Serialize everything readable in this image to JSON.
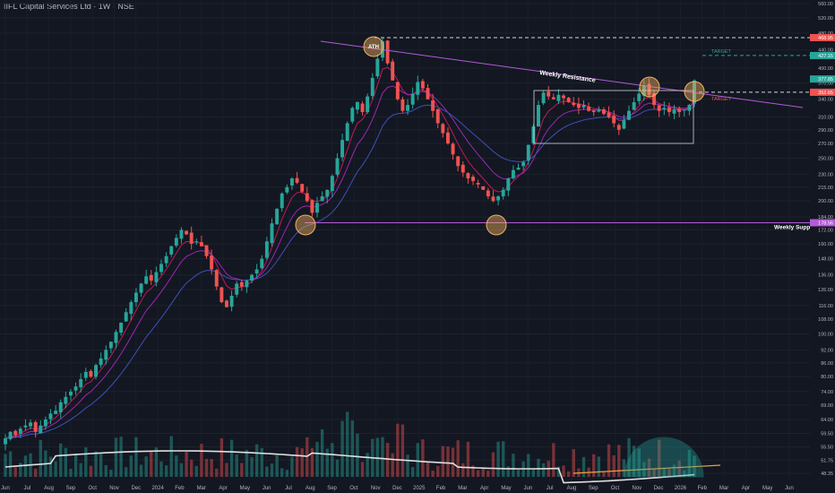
{
  "header": {
    "title": "IIFL Capital Services Ltd · 1W · NSE"
  },
  "colors": {
    "background": "#131722",
    "bullish": "#26a69a",
    "bearish": "#ef5350",
    "resistance": "#b25bd6",
    "support": "#b25bd6",
    "ema_fast": "#c2185b",
    "ema_mid": "#9c27b0",
    "ema_slow": "#3f51b5",
    "volume_ma": "#e0e0e0",
    "target_green": "#26a69a",
    "target_red": "#ef5350",
    "circle": "#f0b060",
    "arc": "#26a69a"
  },
  "annotations": {
    "ath": "ATH",
    "weekly_resistance": "Weekly Resistance",
    "weekly_support": "Weekly Support",
    "target_upper": "TARGET",
    "target_lower": "TARGET"
  },
  "chart_data": {
    "type": "candlestick",
    "title": "IIFL Capital Services Ltd · 1W · NSE",
    "y_scale": "log",
    "ylim": [
      47,
      560
    ],
    "y_ticks": [
      48.35,
      51.75,
      55.5,
      59.5,
      64.0,
      69.0,
      74.0,
      80.0,
      86.0,
      92.0,
      100.0,
      108.0,
      116.0,
      126.0,
      136.0,
      148.0,
      160.0,
      172.0,
      184.0,
      200.0,
      215.0,
      230.0,
      250.0,
      270.0,
      290.0,
      310.0,
      340.0,
      370.0,
      400.0,
      440.0,
      480.0,
      520.0,
      560.0
    ],
    "y_tick_labels": [
      "48.35",
      "51.75",
      "55.50",
      "59.50",
      "64.00",
      "69.00",
      "74.00",
      "80.00",
      "86.00",
      "92.00",
      "100.00",
      "108.00",
      "116.00",
      "126.00",
      "136.00",
      "148.00",
      "160.00",
      "172.00",
      "184.00",
      "200.00",
      "215.00",
      "230.00",
      "250.00",
      "270.00",
      "290.00",
      "310.00",
      "340.00",
      "370.00",
      "400.00",
      "440.00",
      "480.00",
      "520.00",
      "560.00"
    ],
    "x_tick_labels": [
      "Jun",
      "Jul",
      "Aug",
      "Sep",
      "Oct",
      "Nov",
      "Dec",
      "2024",
      "Feb",
      "Mar",
      "Apr",
      "May",
      "Jun",
      "Jul",
      "Aug",
      "Sep",
      "Oct",
      "Nov",
      "Dec",
      "2025",
      "Feb",
      "Mar",
      "Apr",
      "May",
      "Jun",
      "Jul",
      "Aug",
      "Sep",
      "Oct",
      "Nov",
      "Dec",
      "2026",
      "Feb",
      "Mar",
      "Apr",
      "May",
      "Jun"
    ],
    "price_labels": [
      {
        "label": "468.95",
        "value": 468.95,
        "color": "#ef5350"
      },
      {
        "label": "427.15",
        "value": 427.15,
        "color": "#26a69a"
      },
      {
        "label": "377.85",
        "value": 377.85,
        "color": "#26a69a"
      },
      {
        "label": "352.65",
        "value": 352.65,
        "color": "#ef5350"
      },
      {
        "label": "178.56",
        "value": 178.56,
        "color": "#b25bd6"
      }
    ],
    "levels": {
      "ath_dashed": 468.95,
      "target_upper": 427.15,
      "target_lower": 352.65,
      "weekly_support": 178.56
    },
    "closes": [
      58,
      60,
      59,
      61,
      62,
      63,
      60,
      62,
      64,
      66,
      67,
      70,
      72,
      74,
      76,
      79,
      82,
      80,
      85,
      88,
      92,
      96,
      101,
      106,
      112,
      118,
      124,
      130,
      135,
      132,
      138,
      144,
      150,
      158,
      165,
      172,
      168,
      160,
      162,
      158,
      150,
      140,
      128,
      118,
      115,
      122,
      130,
      128,
      132,
      136,
      140,
      148,
      162,
      178,
      192,
      208,
      215,
      225,
      220,
      210,
      200,
      188,
      198,
      205,
      212,
      228,
      250,
      275,
      300,
      325,
      335,
      318,
      345,
      380,
      420,
      460,
      410,
      375,
      340,
      320,
      330,
      350,
      372,
      360,
      340,
      320,
      300,
      285,
      270,
      255,
      240,
      232,
      225,
      222,
      218,
      212,
      205,
      200,
      205,
      212,
      225,
      235,
      238,
      245,
      268,
      295,
      330,
      352,
      345,
      340,
      348,
      342,
      335,
      330,
      325,
      330,
      320,
      318,
      322,
      315,
      310,
      300,
      290,
      305,
      320,
      335,
      350,
      365,
      348,
      330,
      320,
      325,
      318,
      322,
      318,
      322,
      330,
      375
    ],
    "series": [
      {
        "name": "Volume MA"
      }
    ]
  }
}
